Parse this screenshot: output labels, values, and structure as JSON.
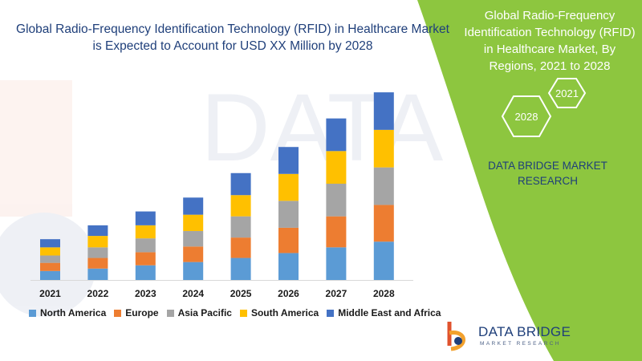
{
  "title_left": "Global Radio-Frequency Identification Technology (RFID) in Healthcare Market is Expected to Account for USD XX Million by 2028",
  "title_right": "Global Radio-Frequency Identification Technology (RFID) in Healthcare Market, By Regions, 2021 to 2028",
  "hex_labels": {
    "year_a": "2021",
    "year_b": "2028"
  },
  "brand_right": "DATA BRIDGE MARKET RESEARCH",
  "watermark": "DATA BRIDGE",
  "logo": {
    "word": "DATA BRIDGE",
    "sub": "MARKET RESEARCH"
  },
  "colors": {
    "panel": "#8dc63f",
    "title_text": "#1f3f7a",
    "north_america": "#5b9bd5",
    "europe": "#ed7d31",
    "asia_pacific": "#a5a5a5",
    "south_america": "#ffc000",
    "middle_east_africa": "#4472c4"
  },
  "chart_data": {
    "type": "bar",
    "stacked": true,
    "categories": [
      "2021",
      "2022",
      "2023",
      "2024",
      "2025",
      "2026",
      "2027",
      "2028"
    ],
    "series": [
      {
        "name": "North America",
        "color": "#5b9bd5",
        "values": [
          11,
          14,
          18,
          22,
          27,
          33,
          40,
          47
        ]
      },
      {
        "name": "Europe",
        "color": "#ed7d31",
        "values": [
          10,
          13,
          16,
          19,
          25,
          31,
          38,
          45
        ]
      },
      {
        "name": "Asia Pacific",
        "color": "#a5a5a5",
        "values": [
          9,
          13,
          17,
          19,
          26,
          33,
          40,
          46
        ]
      },
      {
        "name": "South America",
        "color": "#ffc000",
        "values": [
          10,
          14,
          16,
          20,
          26,
          33,
          40,
          46
        ]
      },
      {
        "name": "Middle East and Africa",
        "color": "#4472c4",
        "values": [
          10,
          13,
          17,
          21,
          27,
          33,
          40,
          46
        ]
      }
    ],
    "ylim": [
      0,
      235
    ],
    "grid": false,
    "legend": "bottom"
  }
}
